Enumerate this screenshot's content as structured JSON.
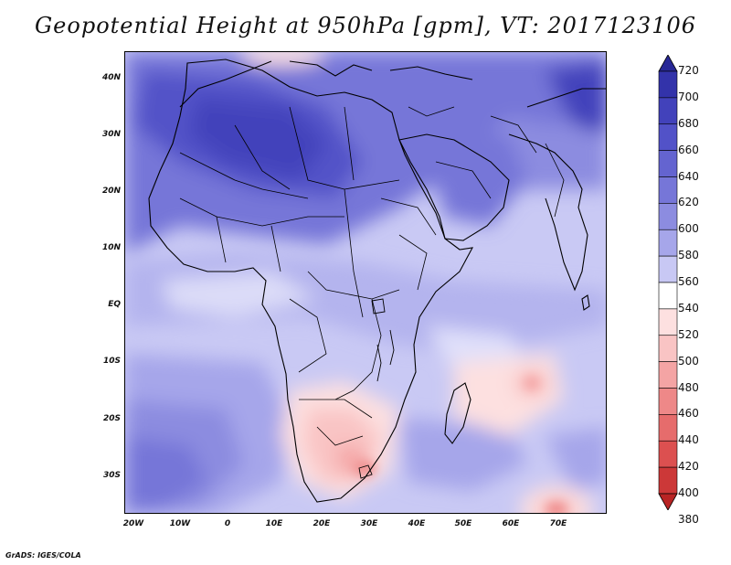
{
  "title": "Geopotential Height at 950hPa [gpm], VT: 2017123106",
  "credit": "GrADS: IGES/COLA",
  "map": {
    "lat_labels": [
      "40N",
      "30N",
      "20N",
      "10N",
      "EQ",
      "10S",
      "20S",
      "30S"
    ],
    "lon_labels": [
      "20W",
      "10W",
      "0",
      "10E",
      "20E",
      "30E",
      "40E",
      "50E",
      "60E",
      "70E"
    ]
  },
  "colorbar": {
    "levels": [
      "720",
      "700",
      "680",
      "660",
      "640",
      "620",
      "600",
      "580",
      "560",
      "540",
      "520",
      "500",
      "480",
      "460",
      "440",
      "420",
      "400",
      "380"
    ],
    "colors": [
      "#282896",
      "#3333aa",
      "#4242bb",
      "#5252c8",
      "#6464d0",
      "#7676d8",
      "#8c8ce0",
      "#a6a6ea",
      "#c8c8f4",
      "#ffffff",
      "#fde0e0",
      "#f9c4c4",
      "#f4a4a4",
      "#ee8888",
      "#e66c6c",
      "#dc5050",
      "#cc3838",
      "#b82424"
    ]
  },
  "colors": {
    "frame": "#000000",
    "land_high": "#6a6ad2",
    "ocean_mid": "#b4b4ee",
    "low": "#f6b8b8"
  }
}
